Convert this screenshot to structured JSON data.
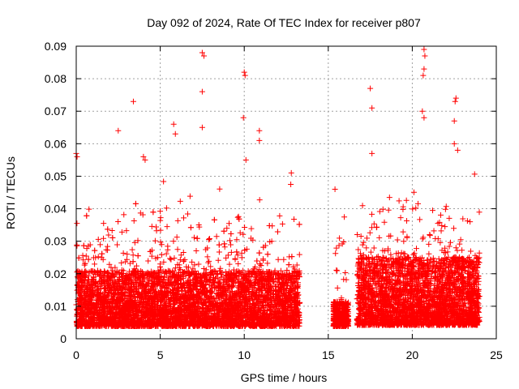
{
  "chart_data": {
    "type": "scatter",
    "title": "Day 092 of 2024, Rate Of TEC Index for receiver p807",
    "xlabel": "GPS time / hours",
    "ylabel": "ROTI / TECUs",
    "xlim": [
      0,
      25
    ],
    "ylim": [
      0,
      0.09
    ],
    "xticks": [
      0,
      5,
      10,
      15,
      20,
      25
    ],
    "yticks": [
      0,
      0.01,
      0.02,
      0.03,
      0.04,
      0.05,
      0.06,
      0.07,
      0.08,
      0.09
    ],
    "ytick_labels": [
      "0",
      "0.01",
      "0.02",
      "0.03",
      "0.04",
      "0.05",
      "0.06",
      "0.07",
      "0.08",
      "0.09"
    ],
    "grid": true,
    "marker": "+",
    "color": "#ff0000",
    "segments": [
      {
        "start": 0.0,
        "end": 13.3,
        "base": 0.011,
        "spread": 0.009
      },
      {
        "start": 15.3,
        "end": 16.2,
        "base": 0.011,
        "spread": 0.004
      },
      {
        "start": 16.7,
        "end": 24.0,
        "base": 0.012,
        "spread": 0.011
      }
    ],
    "notable_points": [
      {
        "x": 0.0,
        "y": 0.057
      },
      {
        "x": 0.05,
        "y": 0.056
      },
      {
        "x": 2.5,
        "y": 0.064
      },
      {
        "x": 3.4,
        "y": 0.073
      },
      {
        "x": 4.0,
        "y": 0.056
      },
      {
        "x": 4.1,
        "y": 0.055
      },
      {
        "x": 5.8,
        "y": 0.066
      },
      {
        "x": 5.9,
        "y": 0.063
      },
      {
        "x": 7.5,
        "y": 0.088
      },
      {
        "x": 7.6,
        "y": 0.087
      },
      {
        "x": 7.5,
        "y": 0.076
      },
      {
        "x": 7.5,
        "y": 0.065
      },
      {
        "x": 10.0,
        "y": 0.082
      },
      {
        "x": 10.05,
        "y": 0.081
      },
      {
        "x": 9.95,
        "y": 0.068
      },
      {
        "x": 10.1,
        "y": 0.055
      },
      {
        "x": 10.9,
        "y": 0.064
      },
      {
        "x": 10.9,
        "y": 0.061
      },
      {
        "x": 12.8,
        "y": 0.051
      },
      {
        "x": 15.4,
        "y": 0.046
      },
      {
        "x": 17.5,
        "y": 0.077
      },
      {
        "x": 17.6,
        "y": 0.071
      },
      {
        "x": 17.6,
        "y": 0.057
      },
      {
        "x": 20.7,
        "y": 0.089
      },
      {
        "x": 20.75,
        "y": 0.087
      },
      {
        "x": 20.7,
        "y": 0.083
      },
      {
        "x": 20.65,
        "y": 0.081
      },
      {
        "x": 20.6,
        "y": 0.07
      },
      {
        "x": 20.7,
        "y": 0.068
      },
      {
        "x": 22.5,
        "y": 0.067
      },
      {
        "x": 22.6,
        "y": 0.074
      },
      {
        "x": 22.55,
        "y": 0.073
      },
      {
        "x": 22.5,
        "y": 0.06
      },
      {
        "x": 22.7,
        "y": 0.058
      }
    ]
  }
}
